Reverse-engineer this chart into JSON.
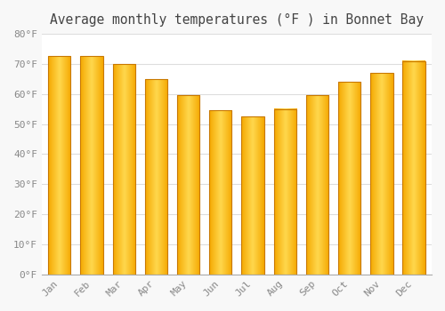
{
  "title": "Average monthly temperatures (°F ) in Bonnet Bay",
  "months": [
    "Jan",
    "Feb",
    "Mar",
    "Apr",
    "May",
    "Jun",
    "Jul",
    "Aug",
    "Sep",
    "Oct",
    "Nov",
    "Dec"
  ],
  "values": [
    72.5,
    72.5,
    70.0,
    65.0,
    59.5,
    54.5,
    52.5,
    55.0,
    59.5,
    64.0,
    67.0,
    71.0
  ],
  "bar_color_left": "#F5A800",
  "bar_color_center": "#FFD84D",
  "bar_color_right": "#F5A800",
  "bar_edge_color": "#C87800",
  "ylim": [
    0,
    80
  ],
  "yticks": [
    0,
    10,
    20,
    30,
    40,
    50,
    60,
    70,
    80
  ],
  "background_color": "#F8F8F8",
  "plot_bg_color": "#FFFFFF",
  "grid_color": "#DDDDDD",
  "title_fontsize": 10.5,
  "tick_fontsize": 8,
  "title_color": "#444444",
  "tick_color": "#888888",
  "bar_width": 0.7,
  "gradient_steps": 100
}
